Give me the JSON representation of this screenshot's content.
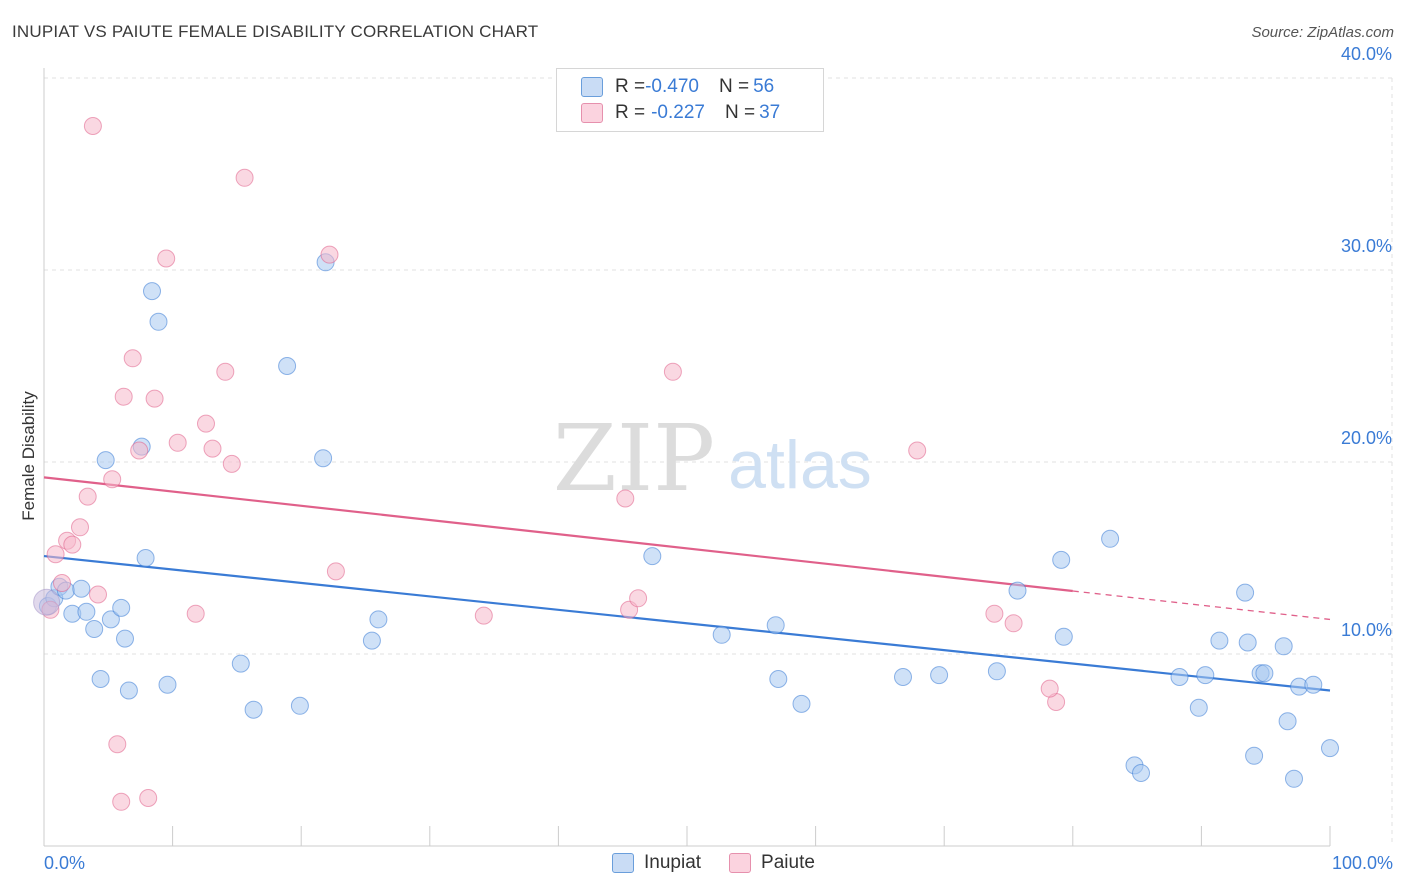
{
  "header": {
    "title": "INUPIAT VS PAIUTE FEMALE DISABILITY CORRELATION CHART",
    "source": "Source: ZipAtlas.com"
  },
  "watermark": {
    "zip": "ZIP",
    "atlas": "atlas"
  },
  "legend_box": {
    "rows": [
      {
        "r_label": "R = ",
        "r_value": "-0.470",
        "n_label": "N = ",
        "n_value": "56",
        "color": "#a8c8f0"
      },
      {
        "r_label": "R = ",
        "r_value": "-0.227",
        "n_label": "N = ",
        "n_value": "37",
        "color": "#f5b8cb"
      }
    ]
  },
  "bottom_legend": [
    {
      "label": "Inupiat",
      "color": "#a8c8f0"
    },
    {
      "label": "Paiute",
      "color": "#f5b8cb"
    }
  ],
  "chart_data": {
    "type": "scatter",
    "title": "INUPIAT VS PAIUTE FEMALE DISABILITY CORRELATION CHART",
    "xlabel": "",
    "ylabel": "Female Disability",
    "xlim": [
      0,
      100
    ],
    "ylim": [
      0,
      41
    ],
    "x_tick_labels": [
      "0.0%",
      "100.0%"
    ],
    "y_ticks": [
      10,
      20,
      30,
      40
    ],
    "y_tick_labels": [
      "10.0%",
      "20.0%",
      "30.0%",
      "40.0%"
    ],
    "grid": true,
    "series": [
      {
        "name": "Inupiat",
        "color": "#3a7bd5",
        "fill": "#a8c8f0",
        "trend": {
          "x0": 0,
          "y0": 15.1,
          "x1": 100,
          "y1": 8.1,
          "dash_from": null
        },
        "points": [
          [
            0.3,
            12.5
          ],
          [
            0.8,
            12.9
          ],
          [
            1.2,
            13.5
          ],
          [
            1.7,
            13.3
          ],
          [
            2.2,
            12.1
          ],
          [
            2.9,
            13.4
          ],
          [
            3.3,
            12.2
          ],
          [
            3.9,
            11.3
          ],
          [
            4.4,
            8.7
          ],
          [
            4.8,
            20.1
          ],
          [
            5.2,
            11.8
          ],
          [
            6.0,
            12.4
          ],
          [
            6.3,
            10.8
          ],
          [
            6.6,
            8.1
          ],
          [
            7.6,
            20.8
          ],
          [
            7.9,
            15.0
          ],
          [
            8.4,
            28.9
          ],
          [
            8.9,
            27.3
          ],
          [
            9.6,
            8.4
          ],
          [
            15.3,
            9.5
          ],
          [
            16.3,
            7.1
          ],
          [
            18.9,
            25.0
          ],
          [
            19.9,
            7.3
          ],
          [
            21.7,
            20.2
          ],
          [
            21.9,
            30.4
          ],
          [
            25.5,
            10.7
          ],
          [
            26.0,
            11.8
          ],
          [
            47.3,
            15.1
          ],
          [
            52.7,
            11.0
          ],
          [
            57.1,
            8.7
          ],
          [
            56.9,
            11.5
          ],
          [
            58.9,
            7.4
          ],
          [
            66.8,
            8.8
          ],
          [
            69.6,
            8.9
          ],
          [
            74.1,
            9.1
          ],
          [
            75.7,
            13.3
          ],
          [
            79.1,
            14.9
          ],
          [
            79.3,
            10.9
          ],
          [
            82.9,
            16.0
          ],
          [
            84.8,
            4.2
          ],
          [
            85.3,
            3.8
          ],
          [
            88.3,
            8.8
          ],
          [
            89.8,
            7.2
          ],
          [
            90.3,
            8.9
          ],
          [
            91.4,
            10.7
          ],
          [
            93.4,
            13.2
          ],
          [
            93.6,
            10.6
          ],
          [
            94.1,
            4.7
          ],
          [
            94.6,
            9.0
          ],
          [
            94.9,
            9.0
          ],
          [
            96.4,
            10.4
          ],
          [
            96.7,
            6.5
          ],
          [
            97.2,
            3.5
          ],
          [
            97.6,
            8.3
          ],
          [
            98.7,
            8.4
          ],
          [
            100.0,
            5.1
          ]
        ]
      },
      {
        "name": "Paiute",
        "color": "#e0608a",
        "fill": "#f5b8cb",
        "trend": {
          "x0": 0,
          "y0": 19.2,
          "x1": 100,
          "y1": 11.8,
          "dash_from": 80
        },
        "points": [
          [
            0.5,
            12.3
          ],
          [
            0.9,
            15.2
          ],
          [
            1.4,
            13.7
          ],
          [
            1.8,
            15.9
          ],
          [
            2.2,
            15.7
          ],
          [
            2.8,
            16.6
          ],
          [
            3.4,
            18.2
          ],
          [
            4.2,
            13.1
          ],
          [
            5.3,
            19.1
          ],
          [
            5.7,
            5.3
          ],
          [
            6.0,
            2.3
          ],
          [
            6.2,
            23.4
          ],
          [
            6.9,
            25.4
          ],
          [
            7.4,
            20.6
          ],
          [
            8.1,
            2.5
          ],
          [
            8.6,
            23.3
          ],
          [
            9.5,
            30.6
          ],
          [
            10.4,
            21.0
          ],
          [
            11.8,
            12.1
          ],
          [
            12.6,
            22.0
          ],
          [
            13.1,
            20.7
          ],
          [
            14.1,
            24.7
          ],
          [
            14.6,
            19.9
          ],
          [
            15.6,
            34.8
          ],
          [
            3.8,
            37.5
          ],
          [
            22.2,
            30.8
          ],
          [
            22.7,
            14.3
          ],
          [
            34.2,
            12.0
          ],
          [
            45.2,
            18.1
          ],
          [
            45.5,
            12.3
          ],
          [
            46.2,
            12.9
          ],
          [
            48.9,
            24.7
          ],
          [
            67.9,
            20.6
          ],
          [
            73.9,
            12.1
          ],
          [
            75.4,
            11.6
          ],
          [
            78.7,
            7.5
          ],
          [
            78.2,
            8.2
          ]
        ]
      }
    ]
  }
}
